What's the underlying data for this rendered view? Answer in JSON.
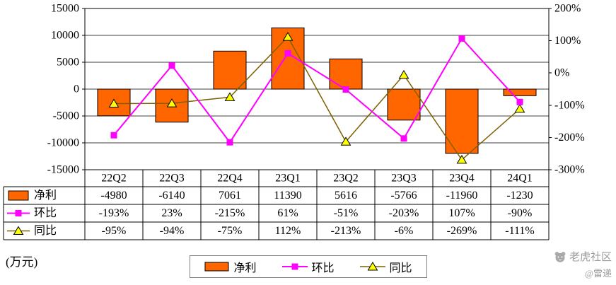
{
  "chart_data": {
    "type": "bar+line",
    "categories": [
      "22Q2",
      "22Q3",
      "22Q4",
      "23Q1",
      "23Q2",
      "23Q3",
      "23Q4",
      "24Q1"
    ],
    "series": [
      {
        "name": "净利",
        "type": "bar",
        "axis": "left",
        "color": "#FF6600",
        "values": [
          -4980,
          -6140,
          7061,
          11390,
          5616,
          -5766,
          -11960,
          -1230
        ],
        "labels": [
          "-4980",
          "-6140",
          "7061",
          "11390",
          "5616",
          "-5766",
          "-11960",
          "-1230"
        ]
      },
      {
        "name": "环比",
        "type": "line",
        "axis": "right",
        "color": "#FF00FF",
        "marker": "square",
        "marker_color": "#FF00FF",
        "values": [
          -193,
          23,
          -215,
          61,
          -51,
          -203,
          107,
          -90
        ],
        "labels": [
          "-193%",
          "23%",
          "-215%",
          "61%",
          "-51%",
          "-203%",
          "107%",
          "-90%"
        ]
      },
      {
        "name": "同比",
        "type": "line",
        "axis": "right",
        "color": "#7F6000",
        "marker": "triangle",
        "marker_color": "#FFFF00",
        "values": [
          -95,
          -94,
          -75,
          112,
          -213,
          -6,
          -269,
          -111
        ],
        "labels": [
          "-95%",
          "-94%",
          "-75%",
          "112%",
          "-213%",
          "-6%",
          "-269%",
          "-111%"
        ]
      }
    ],
    "left_axis": {
      "min": -15000,
      "max": 15000,
      "step": 5000,
      "labels": [
        "15000",
        "10000",
        "5000",
        "0",
        "-5000",
        "-10000",
        "-15000"
      ],
      "unit": "(万元)"
    },
    "right_axis": {
      "min": -300,
      "max": 200,
      "step": 100,
      "labels": [
        "200%",
        "100%",
        "0%",
        "-100%",
        "-200%",
        "-300%"
      ]
    },
    "grid": true,
    "legend_position": "bottom"
  },
  "watermark": {
    "brand": "老虎社区",
    "author": "@雷递"
  }
}
